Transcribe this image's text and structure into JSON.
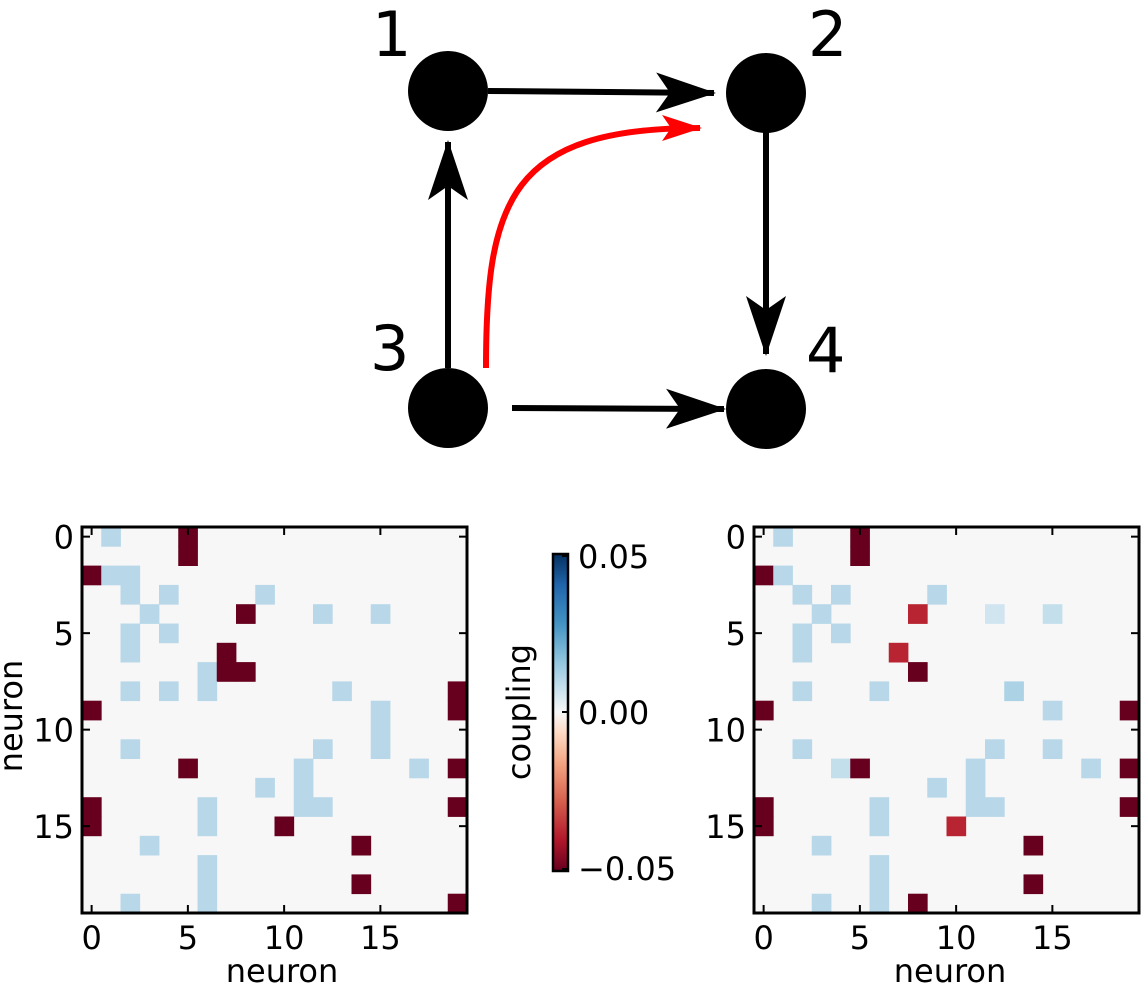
{
  "diagram": {
    "node_labels": [
      "1",
      "2",
      "3",
      "4"
    ],
    "edges": [
      {
        "from": "1",
        "to": "2",
        "color": "#000000"
      },
      {
        "from": "3",
        "to": "1",
        "color": "#000000"
      },
      {
        "from": "3",
        "to": "4",
        "color": "#000000"
      },
      {
        "from": "2",
        "to": "4",
        "color": "#000000"
      },
      {
        "from": "3",
        "to": "2",
        "color": "#ff0000",
        "curved": true
      }
    ]
  },
  "colorbar": {
    "label": "coupling",
    "ticks": [
      "0.05",
      "0.00",
      "−0.05"
    ],
    "min": -0.05,
    "max": 0.05,
    "colormap": "RdBu"
  },
  "chart_data": [
    {
      "type": "heatmap",
      "title": "",
      "xlabel": "neuron",
      "ylabel": "neuron",
      "x_ticks": [
        "0",
        "5",
        "10",
        "15"
      ],
      "y_ticks": [
        "0",
        "5",
        "10",
        "15"
      ],
      "x_tick_values": [
        0,
        5,
        10,
        15
      ],
      "y_tick_values": [
        0,
        5,
        10,
        15
      ],
      "n": 20,
      "background_value": 0,
      "cells": [
        {
          "row": 0,
          "col": 1,
          "v": 0.01
        },
        {
          "row": 0,
          "col": 5,
          "v": -0.05
        },
        {
          "row": 1,
          "col": 5,
          "v": -0.05
        },
        {
          "row": 2,
          "col": 0,
          "v": -0.05
        },
        {
          "row": 2,
          "col": 1,
          "v": 0.01
        },
        {
          "row": 2,
          "col": 2,
          "v": 0.01
        },
        {
          "row": 3,
          "col": 2,
          "v": 0.01
        },
        {
          "row": 3,
          "col": 4,
          "v": 0.01
        },
        {
          "row": 3,
          "col": 9,
          "v": 0.01
        },
        {
          "row": 4,
          "col": 3,
          "v": 0.01
        },
        {
          "row": 4,
          "col": 8,
          "v": -0.05
        },
        {
          "row": 4,
          "col": 12,
          "v": 0.01
        },
        {
          "row": 4,
          "col": 15,
          "v": 0.01
        },
        {
          "row": 5,
          "col": 2,
          "v": 0.01
        },
        {
          "row": 5,
          "col": 4,
          "v": 0.01
        },
        {
          "row": 6,
          "col": 2,
          "v": 0.01
        },
        {
          "row": 6,
          "col": 7,
          "v": -0.05
        },
        {
          "row": 7,
          "col": 6,
          "v": 0.01
        },
        {
          "row": 7,
          "col": 7,
          "v": -0.05
        },
        {
          "row": 7,
          "col": 8,
          "v": -0.05
        },
        {
          "row": 8,
          "col": 2,
          "v": 0.01
        },
        {
          "row": 8,
          "col": 4,
          "v": 0.01
        },
        {
          "row": 8,
          "col": 6,
          "v": 0.01
        },
        {
          "row": 8,
          "col": 13,
          "v": 0.01
        },
        {
          "row": 8,
          "col": 19,
          "v": -0.05
        },
        {
          "row": 9,
          "col": 0,
          "v": -0.05
        },
        {
          "row": 9,
          "col": 15,
          "v": 0.01
        },
        {
          "row": 9,
          "col": 19,
          "v": -0.05
        },
        {
          "row": 10,
          "col": 15,
          "v": 0.01
        },
        {
          "row": 11,
          "col": 2,
          "v": 0.01
        },
        {
          "row": 11,
          "col": 12,
          "v": 0.01
        },
        {
          "row": 11,
          "col": 15,
          "v": 0.01
        },
        {
          "row": 12,
          "col": 5,
          "v": -0.05
        },
        {
          "row": 12,
          "col": 11,
          "v": 0.01
        },
        {
          "row": 12,
          "col": 17,
          "v": 0.01
        },
        {
          "row": 12,
          "col": 19,
          "v": -0.05
        },
        {
          "row": 13,
          "col": 9,
          "v": 0.01
        },
        {
          "row": 13,
          "col": 11,
          "v": 0.01
        },
        {
          "row": 14,
          "col": 0,
          "v": -0.05
        },
        {
          "row": 14,
          "col": 6,
          "v": 0.01
        },
        {
          "row": 14,
          "col": 11,
          "v": 0.01
        },
        {
          "row": 14,
          "col": 12,
          "v": 0.01
        },
        {
          "row": 14,
          "col": 19,
          "v": -0.05
        },
        {
          "row": 15,
          "col": 0,
          "v": -0.05
        },
        {
          "row": 15,
          "col": 6,
          "v": 0.01
        },
        {
          "row": 15,
          "col": 10,
          "v": -0.05
        },
        {
          "row": 16,
          "col": 3,
          "v": 0.01
        },
        {
          "row": 16,
          "col": 14,
          "v": -0.05
        },
        {
          "row": 17,
          "col": 6,
          "v": 0.01
        },
        {
          "row": 18,
          "col": 6,
          "v": 0.01
        },
        {
          "row": 18,
          "col": 14,
          "v": -0.05
        },
        {
          "row": 19,
          "col": 2,
          "v": 0.01
        },
        {
          "row": 19,
          "col": 6,
          "v": 0.01
        },
        {
          "row": 19,
          "col": 19,
          "v": -0.05
        }
      ]
    },
    {
      "type": "heatmap",
      "title": "",
      "xlabel": "neuron",
      "ylabel": "",
      "x_ticks": [
        "0",
        "5",
        "10",
        "15"
      ],
      "y_ticks": [
        "0",
        "5",
        "10",
        "15"
      ],
      "x_tick_values": [
        0,
        5,
        10,
        15
      ],
      "y_tick_values": [
        0,
        5,
        10,
        15
      ],
      "n": 20,
      "background_value": 0,
      "cells": [
        {
          "row": 0,
          "col": 1,
          "v": 0.01
        },
        {
          "row": 0,
          "col": 5,
          "v": -0.05
        },
        {
          "row": 1,
          "col": 5,
          "v": -0.05
        },
        {
          "row": 2,
          "col": 0,
          "v": -0.05
        },
        {
          "row": 2,
          "col": 1,
          "v": 0.01
        },
        {
          "row": 3,
          "col": 2,
          "v": 0.01
        },
        {
          "row": 3,
          "col": 4,
          "v": 0.01
        },
        {
          "row": 3,
          "col": 9,
          "v": 0.01
        },
        {
          "row": 4,
          "col": 3,
          "v": 0.01
        },
        {
          "row": 4,
          "col": 8,
          "v": -0.038
        },
        {
          "row": 4,
          "col": 12,
          "v": 0.006
        },
        {
          "row": 4,
          "col": 15,
          "v": 0.008
        },
        {
          "row": 5,
          "col": 2,
          "v": 0.01
        },
        {
          "row": 5,
          "col": 4,
          "v": 0.01
        },
        {
          "row": 6,
          "col": 2,
          "v": 0.01
        },
        {
          "row": 6,
          "col": 7,
          "v": -0.038
        },
        {
          "row": 7,
          "col": 8,
          "v": -0.05
        },
        {
          "row": 8,
          "col": 2,
          "v": 0.01
        },
        {
          "row": 8,
          "col": 6,
          "v": 0.01
        },
        {
          "row": 8,
          "col": 13,
          "v": 0.012
        },
        {
          "row": 9,
          "col": 0,
          "v": -0.05
        },
        {
          "row": 9,
          "col": 15,
          "v": 0.01
        },
        {
          "row": 9,
          "col": 19,
          "v": -0.05
        },
        {
          "row": 11,
          "col": 2,
          "v": 0.01
        },
        {
          "row": 11,
          "col": 12,
          "v": 0.01
        },
        {
          "row": 11,
          "col": 15,
          "v": 0.01
        },
        {
          "row": 12,
          "col": 4,
          "v": 0.008
        },
        {
          "row": 12,
          "col": 5,
          "v": -0.05
        },
        {
          "row": 12,
          "col": 11,
          "v": 0.01
        },
        {
          "row": 12,
          "col": 17,
          "v": 0.01
        },
        {
          "row": 12,
          "col": 19,
          "v": -0.05
        },
        {
          "row": 13,
          "col": 9,
          "v": 0.01
        },
        {
          "row": 13,
          "col": 11,
          "v": 0.01
        },
        {
          "row": 14,
          "col": 0,
          "v": -0.05
        },
        {
          "row": 14,
          "col": 6,
          "v": 0.01
        },
        {
          "row": 14,
          "col": 11,
          "v": 0.01
        },
        {
          "row": 14,
          "col": 12,
          "v": 0.01
        },
        {
          "row": 14,
          "col": 19,
          "v": -0.05
        },
        {
          "row": 15,
          "col": 0,
          "v": -0.05
        },
        {
          "row": 15,
          "col": 6,
          "v": 0.01
        },
        {
          "row": 15,
          "col": 10,
          "v": -0.038
        },
        {
          "row": 16,
          "col": 3,
          "v": 0.01
        },
        {
          "row": 16,
          "col": 14,
          "v": -0.05
        },
        {
          "row": 17,
          "col": 6,
          "v": 0.01
        },
        {
          "row": 18,
          "col": 6,
          "v": 0.01
        },
        {
          "row": 18,
          "col": 14,
          "v": -0.05
        },
        {
          "row": 19,
          "col": 3,
          "v": 0.01
        },
        {
          "row": 19,
          "col": 6,
          "v": 0.01
        },
        {
          "row": 19,
          "col": 8,
          "v": -0.05
        }
      ]
    }
  ]
}
